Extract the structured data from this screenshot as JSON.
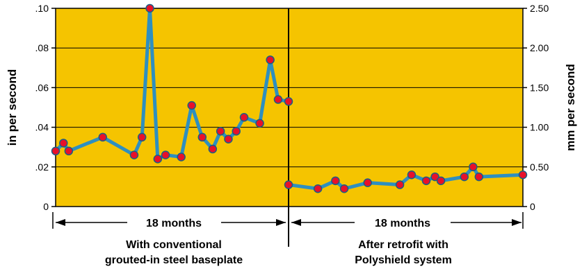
{
  "chart_data": {
    "type": "line",
    "ylabel_left": "in per second",
    "ylabel_right": "mm per second",
    "ylim_left": [
      0,
      0.1
    ],
    "ylim_right": [
      0,
      2.5
    ],
    "yticks_left": [
      "0",
      ".02",
      ".04",
      ".06",
      ".08",
      ".10"
    ],
    "yticks_right": [
      "0",
      "0.50",
      "1.00",
      "1.50",
      "2.00",
      "2.50"
    ],
    "grid": true,
    "background_color": "#F5C400",
    "line_color": "#2E8FC0",
    "marker_color": "#E8102A",
    "segments": [
      {
        "span_label": "18 months",
        "caption_line1": "With conventional",
        "caption_line2": "grouted-in steel baseplate",
        "x": [
          0,
          0.3,
          0.5,
          1.8,
          3.0,
          3.3,
          3.6,
          3.9,
          4.2,
          4.8,
          5.2,
          5.6,
          6.0,
          6.3,
          6.6,
          6.9,
          7.2,
          7.8,
          8.2,
          8.5,
          8.9
        ],
        "values": [
          0.028,
          0.032,
          0.028,
          0.035,
          0.026,
          0.035,
          0.1,
          0.024,
          0.026,
          0.025,
          0.051,
          0.035,
          0.029,
          0.038,
          0.034,
          0.038,
          0.045,
          0.042,
          0.074,
          0.054,
          0.053
        ]
      },
      {
        "span_label": "18 months",
        "caption_line1": "After retrofit with",
        "caption_line2": "Polyshield system",
        "x": [
          0,
          1.0,
          1.6,
          1.9,
          2.7,
          3.8,
          4.2,
          4.7,
          5.0,
          5.2,
          6.0,
          6.3,
          6.5,
          8.0
        ],
        "values": [
          0.011,
          0.009,
          0.013,
          0.009,
          0.012,
          0.011,
          0.016,
          0.013,
          0.015,
          0.013,
          0.015,
          0.02,
          0.015,
          0.016
        ]
      }
    ]
  }
}
